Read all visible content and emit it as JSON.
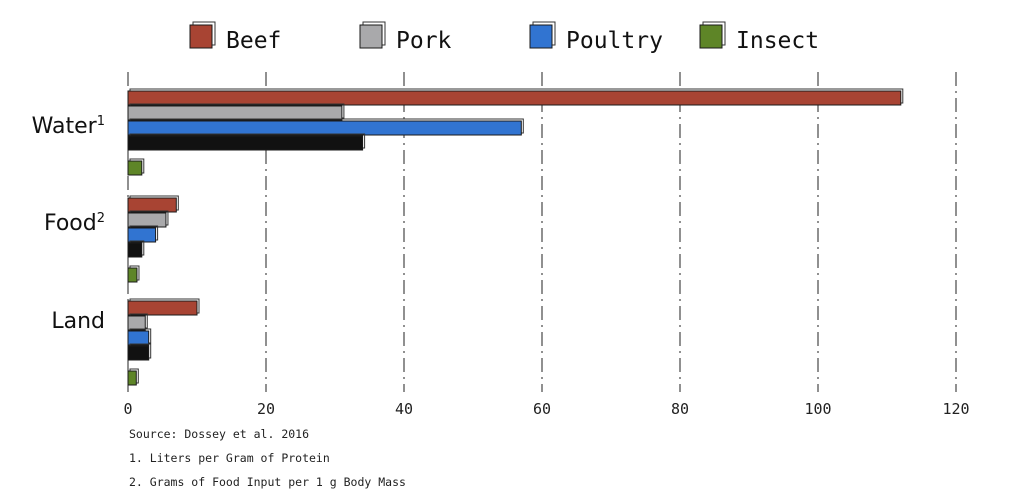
{
  "chart_data": {
    "type": "bar",
    "orientation": "horizontal",
    "categories": [
      {
        "label": "Water",
        "superscript": "1"
      },
      {
        "label": "Food",
        "superscript": "2"
      },
      {
        "label": "Land",
        "superscript": ""
      }
    ],
    "series": [
      {
        "name": "Beef",
        "color": "#a84433",
        "values": [
          112,
          7,
          10
        ]
      },
      {
        "name": "Pork",
        "color": "#a9a9ab",
        "values": [
          31,
          5.5,
          2.5
        ]
      },
      {
        "name": "Poultry",
        "color": "#3174d1",
        "values": [
          57,
          4,
          3
        ]
      },
      {
        "name": "",
        "color": "#111111",
        "values": [
          34,
          2,
          3
        ]
      },
      {
        "name": "Insect",
        "color": "#5e8527",
        "values": [
          2,
          1.3,
          1.2
        ]
      }
    ],
    "xlim": [
      0,
      120
    ],
    "xticks": [
      0,
      20,
      40,
      60,
      80,
      100,
      120
    ],
    "grid": "vertical dash-dot",
    "legend_position": "top",
    "legend_entries": [
      "Beef",
      "Pork",
      "Poultry",
      "Insect"
    ],
    "notes": [
      "Source: Dossey et al. 2016",
      "1. Liters per Gram of Protein",
      "2. Grams of Food Input per 1 g Body Mass"
    ]
  }
}
